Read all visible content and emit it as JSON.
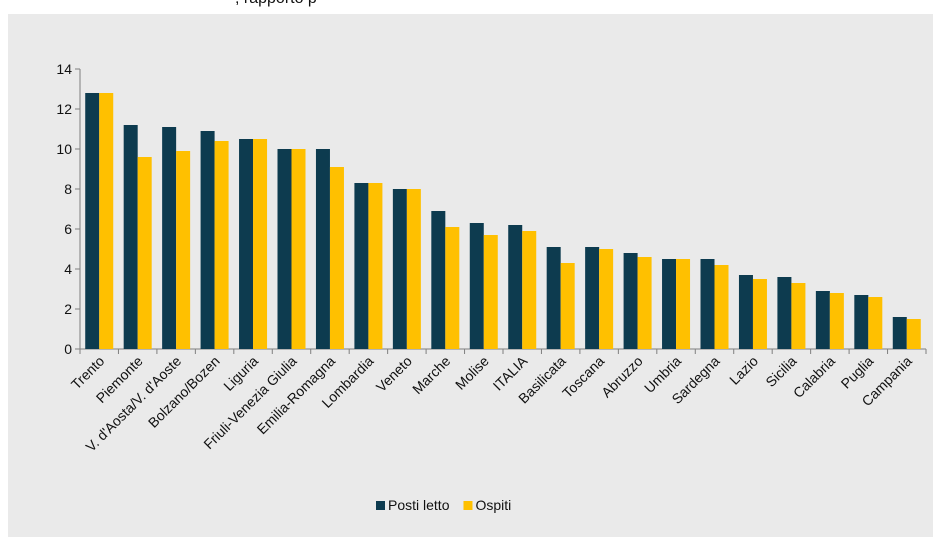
{
  "header": {
    "caption": ", rapporto p"
  },
  "chart_data": {
    "type": "bar",
    "title": "",
    "xlabel": "",
    "ylabel": "",
    "ylim": [
      0,
      14
    ],
    "yticks": [
      0,
      2,
      4,
      6,
      8,
      10,
      12,
      14
    ],
    "grid": false,
    "legend_position": "bottom",
    "background": "#eaeaea",
    "categories": [
      "Trento",
      "Piemonte",
      "V. d'Aosta/V. d'Aoste",
      "Bolzano/Bozen",
      "Liguria",
      "Friuli-Venezia Giulia",
      "Emilia-Romagna",
      "Lombardia",
      "Veneto",
      "Marche",
      "Molise",
      "ITALIA",
      "Basilicata",
      "Toscana",
      "Abruzzo",
      "Umbria",
      "Sardegna",
      "Lazio",
      "Sicilia",
      "Calabria",
      "Puglia",
      "Campania"
    ],
    "series": [
      {
        "name": "Posti letto",
        "color": "#0d3b4f",
        "values": [
          12.8,
          11.2,
          11.1,
          10.9,
          10.5,
          10.0,
          10.0,
          8.3,
          8.0,
          6.9,
          6.3,
          6.2,
          5.1,
          5.1,
          4.8,
          4.5,
          4.5,
          3.7,
          3.6,
          2.9,
          2.7,
          1.6
        ]
      },
      {
        "name": "Ospiti",
        "color": "#ffc000",
        "values": [
          12.8,
          9.6,
          9.9,
          10.4,
          10.5,
          10.0,
          9.1,
          8.3,
          8.0,
          6.1,
          5.7,
          5.9,
          4.3,
          5.0,
          4.6,
          4.5,
          4.2,
          3.5,
          3.3,
          2.8,
          2.6,
          1.5
        ]
      }
    ]
  }
}
